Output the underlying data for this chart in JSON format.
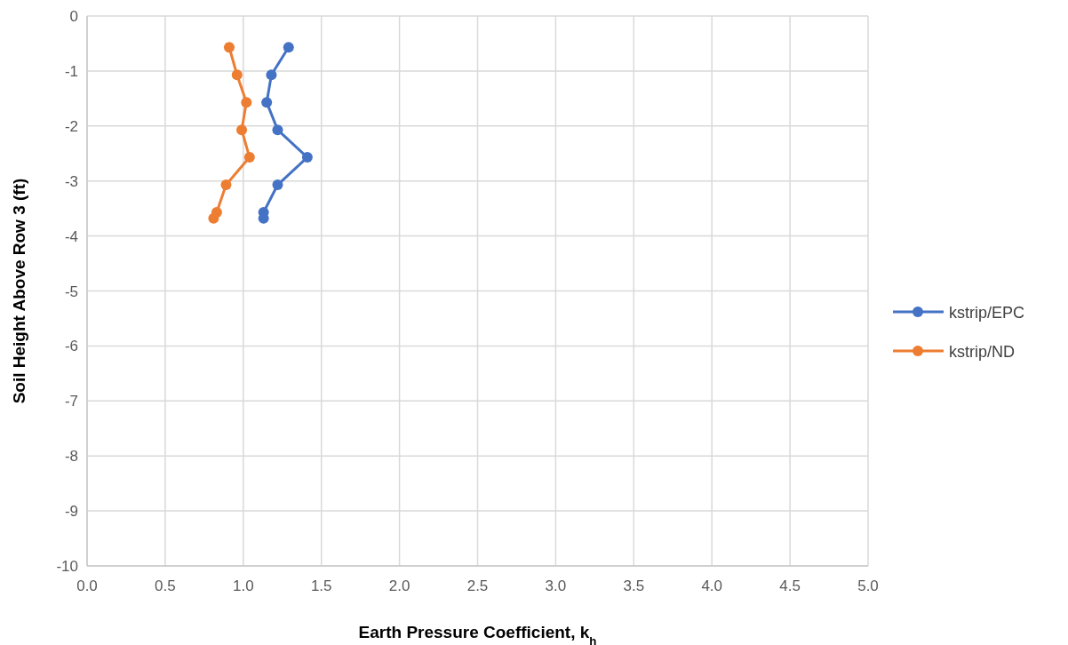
{
  "chart_data": {
    "type": "line",
    "xlabel": "Earth Pressure Coefficient, k$_{h}$",
    "ylabel": "Soil Height Above Row 3 (ft)",
    "series": [
      {
        "name": "kstrip/EPC",
        "color": "#4472c4",
        "x": [
          1.29,
          1.18,
          1.15,
          1.22,
          1.41,
          1.22,
          1.13,
          1.13
        ],
        "values": [
          -0.57,
          -1.07,
          -1.57,
          -2.07,
          -2.57,
          -3.07,
          -3.57,
          -3.68
        ]
      },
      {
        "name": "kstrip/ND",
        "color": "#ed7d31",
        "x": [
          0.91,
          0.96,
          1.02,
          0.99,
          1.04,
          0.89,
          0.83,
          0.81
        ],
        "values": [
          -0.57,
          -1.07,
          -1.57,
          -2.07,
          -2.57,
          -3.07,
          -3.57,
          -3.68
        ]
      }
    ],
    "xlim": [
      0,
      5
    ],
    "xticks": [
      {
        "value": 0,
        "label": "0.0"
      },
      {
        "value": 0.5,
        "label": "0.5"
      },
      {
        "value": 1,
        "label": "1.0"
      },
      {
        "value": 1.5,
        "label": "1.5"
      },
      {
        "value": 2,
        "label": "2.0"
      },
      {
        "value": 2.5,
        "label": "2.5"
      },
      {
        "value": 3,
        "label": "3.0"
      },
      {
        "value": 3.5,
        "label": "3.5"
      },
      {
        "value": 4,
        "label": "4.0"
      },
      {
        "value": 4.5,
        "label": "4.5"
      },
      {
        "value": 5,
        "label": "5.0"
      }
    ],
    "ylim": [
      -10,
      0
    ],
    "yticks": [
      0,
      -1,
      -2,
      -3,
      -4,
      -5,
      -6,
      -7,
      -8,
      -9,
      -10
    ],
    "grid": true,
    "legend": "right",
    "marker": "circle",
    "line_style": "solid"
  }
}
